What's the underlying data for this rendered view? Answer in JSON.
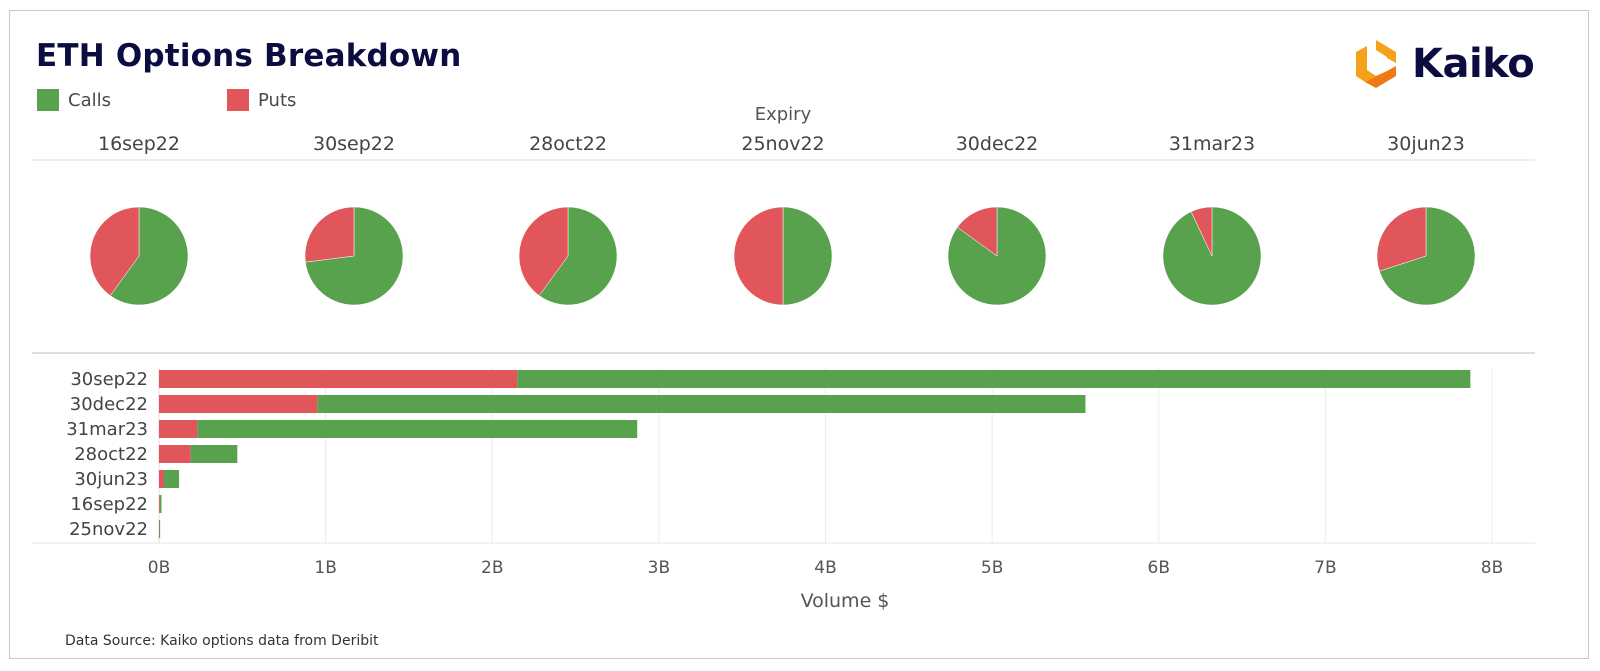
{
  "title": "ETH Options Breakdown",
  "legend": [
    {
      "label": "Calls",
      "color": "#58a24e"
    },
    {
      "label": "Puts",
      "color": "#e0565b"
    }
  ],
  "logo": {
    "text": "Kaiko",
    "mark_colors": [
      "#f7a11a",
      "#ee7a14"
    ]
  },
  "source": "Data Source: Kaiko options data from Deribit",
  "chart_data": [
    {
      "type": "pie",
      "axis_title": "Expiry",
      "series": [
        "Calls",
        "Puts"
      ],
      "colors": {
        "Calls": "#58a24e",
        "Puts": "#e0565b"
      },
      "categories": [
        "16sep22",
        "30sep22",
        "28oct22",
        "25nov22",
        "30dec22",
        "31mar23",
        "30jun23"
      ],
      "calls_share": [
        0.6,
        0.73,
        0.6,
        0.5,
        0.85,
        0.93,
        0.7
      ],
      "puts_share": [
        0.4,
        0.27,
        0.4,
        0.5,
        0.15,
        0.07,
        0.3
      ]
    },
    {
      "type": "bar",
      "orientation": "horizontal",
      "stacked": true,
      "categories": [
        "30sep22",
        "30dec22",
        "31mar23",
        "28oct22",
        "30jun23",
        "16sep22",
        "25nov22"
      ],
      "series": [
        {
          "name": "Puts",
          "color": "#e0565b",
          "values": [
            2150000000,
            950000000,
            230000000,
            190000000,
            30000000,
            5000000,
            2000000
          ]
        },
        {
          "name": "Calls",
          "color": "#58a24e",
          "values": [
            5720000000,
            4610000000,
            2640000000,
            280000000,
            90000000,
            10000000,
            3000000
          ]
        }
      ],
      "xlabel": "Volume $",
      "xlim": [
        0,
        8000000000
      ],
      "xticks": [
        0,
        1000000000,
        2000000000,
        3000000000,
        4000000000,
        5000000000,
        6000000000,
        7000000000,
        8000000000
      ],
      "xtick_labels": [
        "0B",
        "1B",
        "2B",
        "3B",
        "4B",
        "5B",
        "6B",
        "7B",
        "8B"
      ],
      "grid": true
    }
  ]
}
